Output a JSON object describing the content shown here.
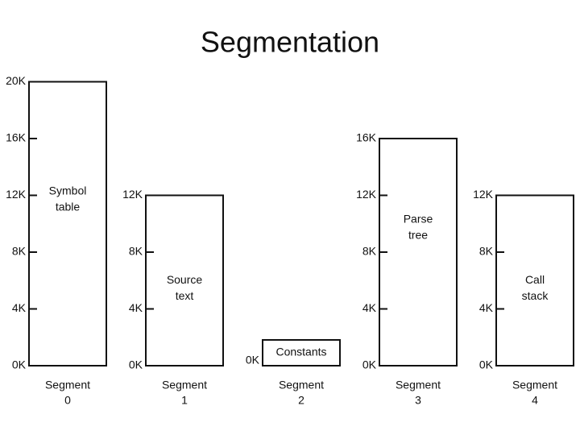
{
  "title": "Segmentation",
  "segments": [
    {
      "ticks": [
        "0K",
        "4K",
        "8K",
        "12K",
        "16K",
        "20K"
      ],
      "label": [
        "Symbol",
        "table"
      ],
      "caption": [
        "Segment",
        "0"
      ]
    },
    {
      "ticks": [
        "0K",
        "4K",
        "8K",
        "12K"
      ],
      "label": [
        "Source",
        "text"
      ],
      "caption": [
        "Segment",
        "1"
      ]
    },
    {
      "ticks": [
        "0K"
      ],
      "label": [
        "Constants"
      ],
      "caption": [
        "Segment",
        "2"
      ]
    },
    {
      "ticks": [
        "0K",
        "4K",
        "8K",
        "12K",
        "16K"
      ],
      "label": [
        "Parse",
        "tree"
      ],
      "caption": [
        "Segment",
        "3"
      ]
    },
    {
      "ticks": [
        "0K",
        "4K",
        "8K",
        "12K"
      ],
      "label": [
        "Call",
        "stack"
      ],
      "caption": [
        "Segment",
        "4"
      ]
    }
  ]
}
